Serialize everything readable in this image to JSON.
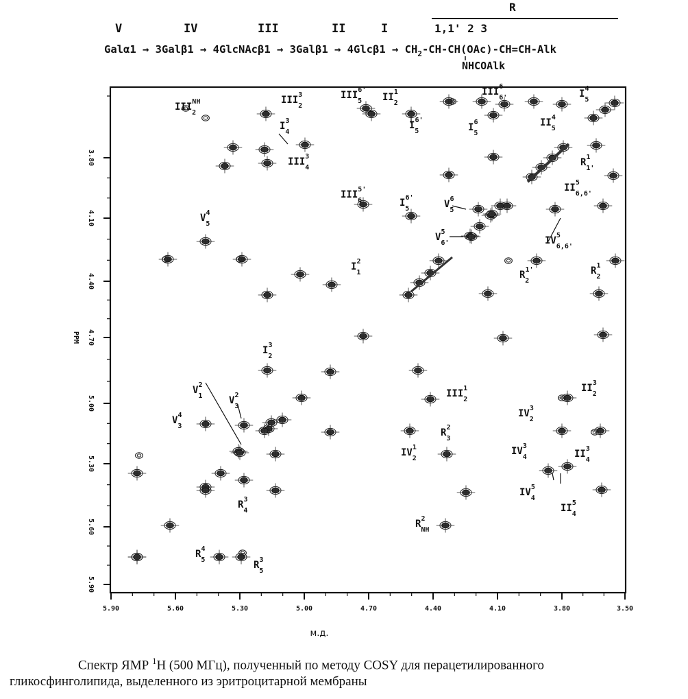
{
  "header": {
    "residues": [
      "V",
      "IV",
      "III",
      "II",
      "I"
    ],
    "r_label": "R",
    "r_positions": "1,1'  2   3",
    "chain_parts": [
      "Galα1",
      "3Galβ1",
      "4GlcNAcβ1",
      "3Galβ1",
      "4Glcβ1",
      "CH",
      "-CH-CH(OAc)-CH=CH-Alk"
    ],
    "ch_subscript": "2",
    "nh_line": "NHCOAlk"
  },
  "axes": {
    "ylabel": "PPM",
    "xlabel": "м.д.",
    "x_ticks": [
      "5.90",
      "5.60",
      "5.30",
      "5.00",
      "4.70",
      "4.40",
      "4.10",
      "3.80",
      "3.50"
    ],
    "y_ticks": [
      "3.80",
      "4.10",
      "4.40",
      "4.70",
      "5.00",
      "5.30",
      "5.60",
      "5.90"
    ]
  },
  "assignments": [
    {
      "base": "III",
      "sup": "NH",
      "sub": "2"
    },
    {
      "base": "III",
      "sup": "3",
      "sub": "2"
    },
    {
      "base": "III",
      "sup": "6'",
      "sub": "5"
    },
    {
      "base": "II",
      "sup": "1",
      "sub": "2"
    },
    {
      "base": "III",
      "sup": "6",
      "sub": "6'"
    },
    {
      "base": "II",
      "sup": "4",
      "sub": "5"
    },
    {
      "base": "I",
      "sup": "4",
      "sub": "5"
    },
    {
      "base": "I",
      "sup": "3",
      "sub": "4"
    },
    {
      "base": "III",
      "sup": "3",
      "sub": "4"
    },
    {
      "base": "I",
      "sup": "6'",
      "sub": "5"
    },
    {
      "base": "I",
      "sup": "6",
      "sub": "5"
    },
    {
      "base": "R",
      "sup": "1",
      "sub": "1'"
    },
    {
      "base": "III",
      "sup": "5'",
      "sub": "6"
    },
    {
      "base": "I",
      "sup": "6'",
      "sub": "5"
    },
    {
      "base": "V",
      "sup": "6",
      "sub": "5"
    },
    {
      "base": "II",
      "sup": "5",
      "sub": "6,6'"
    },
    {
      "base": "V",
      "sup": "4",
      "sub": "5"
    },
    {
      "base": "V",
      "sup": "5",
      "sub": "6'"
    },
    {
      "base": "IV",
      "sup": "5",
      "sub": "6,6'"
    },
    {
      "base": "I",
      "sup": "2",
      "sub": "1"
    },
    {
      "base": "R",
      "sup": "1'",
      "sub": "2"
    },
    {
      "base": "R",
      "sup": "1",
      "sub": "2"
    },
    {
      "base": "I",
      "sup": "3",
      "sub": "2"
    },
    {
      "base": "V",
      "sup": "2",
      "sub": "1"
    },
    {
      "base": "V",
      "sup": "2",
      "sub": "3"
    },
    {
      "base": "II",
      "sup": "3",
      "sub": "2"
    },
    {
      "base": "III",
      "sup": "1",
      "sub": "2"
    },
    {
      "base": "V",
      "sup": "4",
      "sub": "3"
    },
    {
      "base": "IV",
      "sup": "3",
      "sub": "2"
    },
    {
      "base": "R",
      "sup": "2",
      "sub": "3"
    },
    {
      "base": "IV",
      "sup": "1",
      "sub": "2"
    },
    {
      "base": "IV",
      "sup": "3",
      "sub": "4"
    },
    {
      "base": "II",
      "sup": "3",
      "sub": "4"
    },
    {
      "base": "R",
      "sup": "3",
      "sub": "4"
    },
    {
      "base": "IV",
      "sup": "5",
      "sub": "4"
    },
    {
      "base": "II",
      "sup": "5",
      "sub": "4"
    },
    {
      "base": "R",
      "sup": "2",
      "sub": "NH"
    },
    {
      "base": "R",
      "sup": "4",
      "sub": "5"
    },
    {
      "base": "R",
      "sup": "3",
      "sub": "5"
    }
  ],
  "caption": {
    "line1_a": "Спектр ЯМР ",
    "line1_sup": "1",
    "line1_b": "H (500 МГц), полученный по методу COSY для перацетилированного",
    "line2": "гликосфинголипида, выделенного из эритроцитарной мембраны"
  }
}
